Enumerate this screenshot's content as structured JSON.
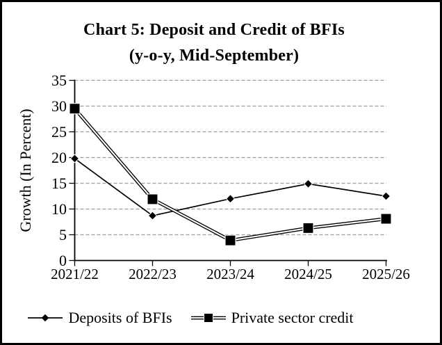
{
  "title": {
    "line1": "Chart 5:  Deposit and Credit of BFIs",
    "line2": "(y-o-y, Mid-September)"
  },
  "axes": {
    "y_label": "Growth (In Percent)",
    "y_ticks": [
      35,
      30,
      25,
      20,
      15,
      10,
      5,
      0
    ]
  },
  "legend": {
    "items": [
      {
        "label": "Deposits of BFIs",
        "marker": "diamond-icon"
      },
      {
        "label": "Private sector credit",
        "marker": "square-icon"
      }
    ]
  },
  "chart_data": {
    "type": "line",
    "title": "Chart 5:  Deposit and Credit of BFIs (y-o-y, Mid-September)",
    "categories": [
      "2021/22",
      "2022/23",
      "2023/24",
      "2024/25",
      "2025/26"
    ],
    "series": [
      {
        "name": "Deposits of BFIs",
        "marker": "diamond",
        "line_style": "single",
        "values": [
          19.8,
          8.7,
          12.0,
          14.9,
          12.5
        ]
      },
      {
        "name": "Private sector credit",
        "marker": "square",
        "line_style": "double",
        "values": [
          29.5,
          11.9,
          3.9,
          6.3,
          8.1
        ]
      }
    ],
    "xlabel": "",
    "ylabel": "Growth (In Percent)",
    "ylim": [
      0,
      35
    ],
    "ytick_step": 5,
    "grid": "horizontal-dashed",
    "legend_position": "bottom"
  },
  "colors": {
    "series_line": "#000000",
    "grid": "#9a9a9a",
    "axis": "#000000",
    "text": "#000000",
    "background": "#ffffff",
    "border": "#000000"
  }
}
